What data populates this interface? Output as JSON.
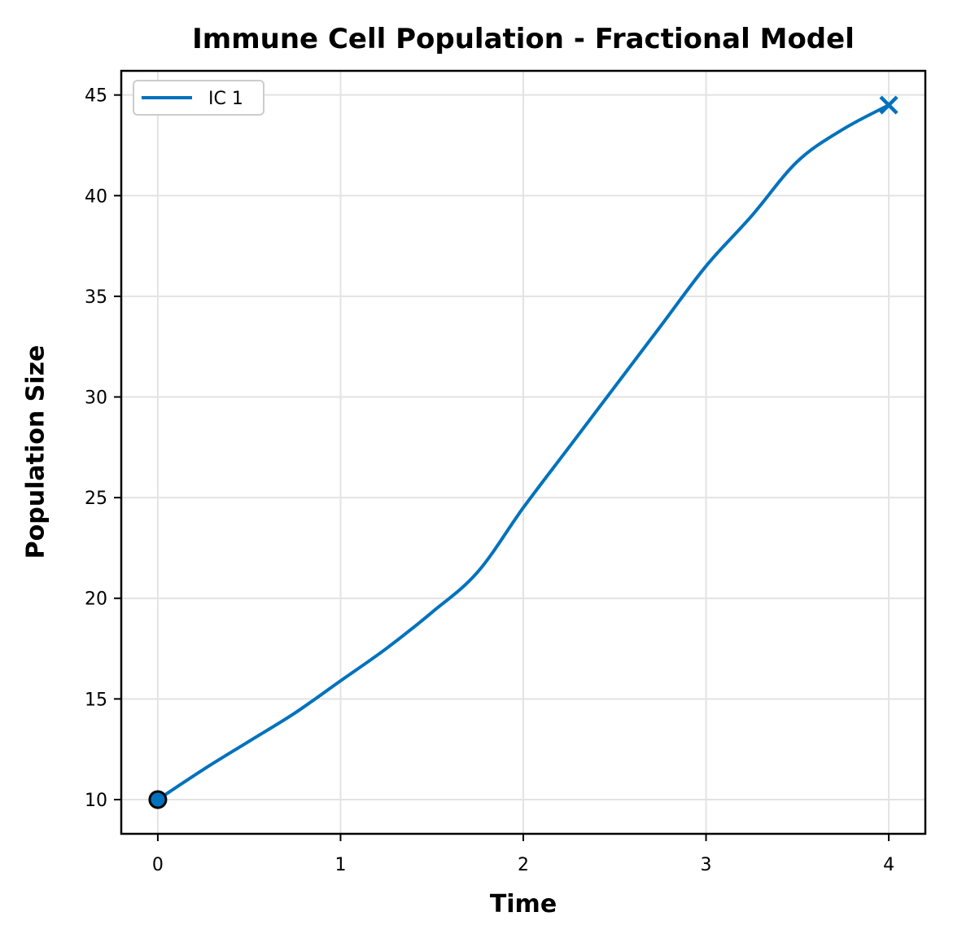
{
  "chart_data": {
    "type": "line",
    "title": "Immune Cell Population - Fractional Model",
    "xlabel": "Time",
    "ylabel": "Population Size",
    "xlim": [
      -0.2,
      4.2
    ],
    "ylim": [
      8.3,
      46.2
    ],
    "xticks": [
      0,
      1,
      2,
      3,
      4
    ],
    "xtick_labels": [
      "0",
      "1",
      "2",
      "3",
      "4"
    ],
    "yticks": [
      10,
      15,
      20,
      25,
      30,
      35,
      40,
      45
    ],
    "ytick_labels": [
      "10",
      "15",
      "20",
      "25",
      "30",
      "35",
      "40",
      "45"
    ],
    "grid": true,
    "legend_position": "top-left",
    "series": [
      {
        "name": "IC 1",
        "color": "#0072BD",
        "start_marker": "circle",
        "end_marker": "x",
        "x": [
          0,
          0.25,
          0.5,
          0.75,
          1.0,
          1.25,
          1.5,
          1.75,
          2.0,
          2.25,
          2.5,
          2.75,
          3.0,
          3.25,
          3.5,
          3.75,
          4.0
        ],
        "values": [
          10.0,
          11.5,
          12.9,
          14.3,
          15.9,
          17.5,
          19.3,
          21.3,
          24.5,
          27.5,
          30.5,
          33.5,
          36.5,
          39.0,
          41.7,
          43.3,
          44.5
        ]
      }
    ]
  }
}
